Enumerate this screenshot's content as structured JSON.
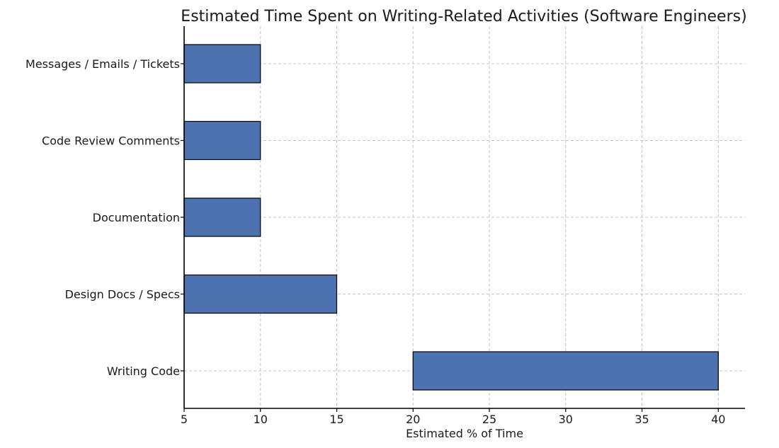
{
  "chart_data": {
    "type": "bar",
    "orientation": "horizontal",
    "title": "Estimated Time Spent on Writing-Related Activities (Software Engineers)",
    "xlabel": "Estimated % of Time",
    "ylabel": "",
    "categories": [
      "Writing Code",
      "Design Docs / Specs",
      "Documentation",
      "Code Review Comments",
      "Messages / Emails / Tickets"
    ],
    "ranges": [
      [
        20,
        40
      ],
      [
        5,
        15
      ],
      [
        5,
        10
      ],
      [
        5,
        10
      ],
      [
        5,
        10
      ]
    ],
    "xlim": [
      5,
      41.75
    ],
    "xticks": [
      5,
      10,
      15,
      20,
      25,
      30,
      35,
      40
    ],
    "grid": true,
    "bar_color": "#4c72b0",
    "edge_color": "#000000",
    "grid_color": "#c4c4c4"
  }
}
